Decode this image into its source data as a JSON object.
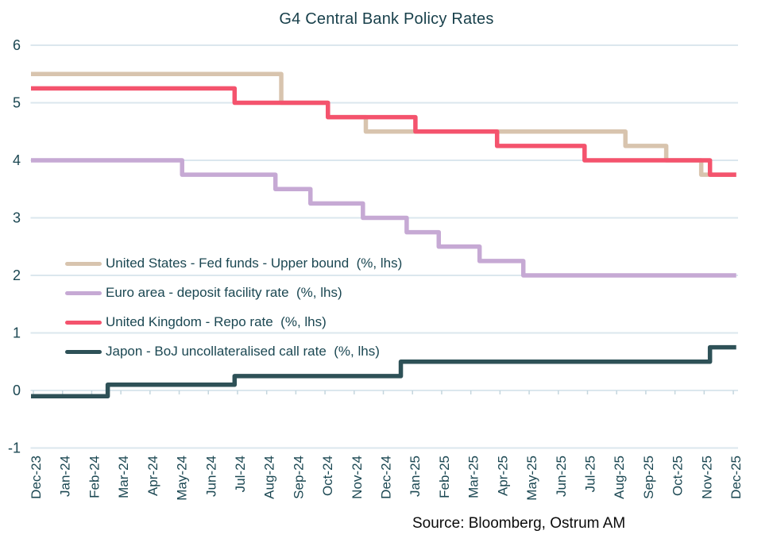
{
  "chart_data": {
    "type": "line",
    "title": "G4 Central Bank Policy Rates",
    "source": "Source: Bloomberg, Ostrum AM",
    "x_labels": [
      "Dec-23",
      "Jan-24",
      "Feb-24",
      "Mar-24",
      "Apr-24",
      "May-24",
      "Jun-24",
      "Jul-24",
      "Aug-24",
      "Sep-24",
      "Oct-24",
      "Nov-24",
      "Dec-24",
      "Jan-25",
      "Feb-25",
      "Mar-25",
      "Apr-25",
      "May-25",
      "Jun-25",
      "Jul-25",
      "Aug-25",
      "Sep-25",
      "Oct-25",
      "Nov-25",
      "Dec-25"
    ],
    "yticks": [
      6,
      5,
      4,
      3,
      2,
      1,
      0,
      -1
    ],
    "ylim": [
      -1,
      6
    ],
    "grid": true,
    "legend_position": "inside-middle-left",
    "x_end_month": 24.1,
    "series": [
      {
        "name": "United States - Fed funds - Upper bound  (%, lhs)",
        "color": "#d8c4ae",
        "start_value": 5.5,
        "steps": [
          {
            "m": 8.5,
            "v": 5.0
          },
          {
            "m": 10.1,
            "v": 4.75
          },
          {
            "m": 11.4,
            "v": 4.5
          },
          {
            "m": 20.3,
            "v": 4.25
          },
          {
            "m": 21.7,
            "v": 4.0
          },
          {
            "m": 22.9,
            "v": 3.75
          }
        ]
      },
      {
        "name": "Euro area - deposit facility rate  (%, lhs)",
        "color": "#c6a9d4",
        "start_value": 4.0,
        "steps": [
          {
            "m": 5.1,
            "v": 3.75
          },
          {
            "m": 8.3,
            "v": 3.5
          },
          {
            "m": 9.5,
            "v": 3.25
          },
          {
            "m": 11.3,
            "v": 3.0
          },
          {
            "m": 12.8,
            "v": 2.75
          },
          {
            "m": 13.9,
            "v": 2.5
          },
          {
            "m": 15.3,
            "v": 2.25
          },
          {
            "m": 16.8,
            "v": 2.0
          }
        ]
      },
      {
        "name": "United Kingdom - Repo rate  (%, lhs)",
        "color": "#f4536d",
        "start_value": 5.25,
        "steps": [
          {
            "m": 6.9,
            "v": 5.0
          },
          {
            "m": 10.1,
            "v": 4.75
          },
          {
            "m": 13.1,
            "v": 4.5
          },
          {
            "m": 15.9,
            "v": 4.25
          },
          {
            "m": 18.9,
            "v": 4.0
          },
          {
            "m": 23.2,
            "v": 3.75
          }
        ]
      },
      {
        "name": "Japon - BoJ uncollateralised call rate  (%, lhs)",
        "color": "#2e5157",
        "start_value": -0.1,
        "steps": [
          {
            "m": 2.55,
            "v": 0.1
          },
          {
            "m": 6.9,
            "v": 0.25
          },
          {
            "m": 12.6,
            "v": 0.5
          },
          {
            "m": 23.2,
            "v": 0.75
          }
        ]
      }
    ],
    "colors": {
      "gridline": "#dbe7ee",
      "tick": "#c4d6de",
      "axis_text": "#1b4752",
      "title_text": "#173f4a",
      "source_text": "#0b0b0b"
    }
  }
}
